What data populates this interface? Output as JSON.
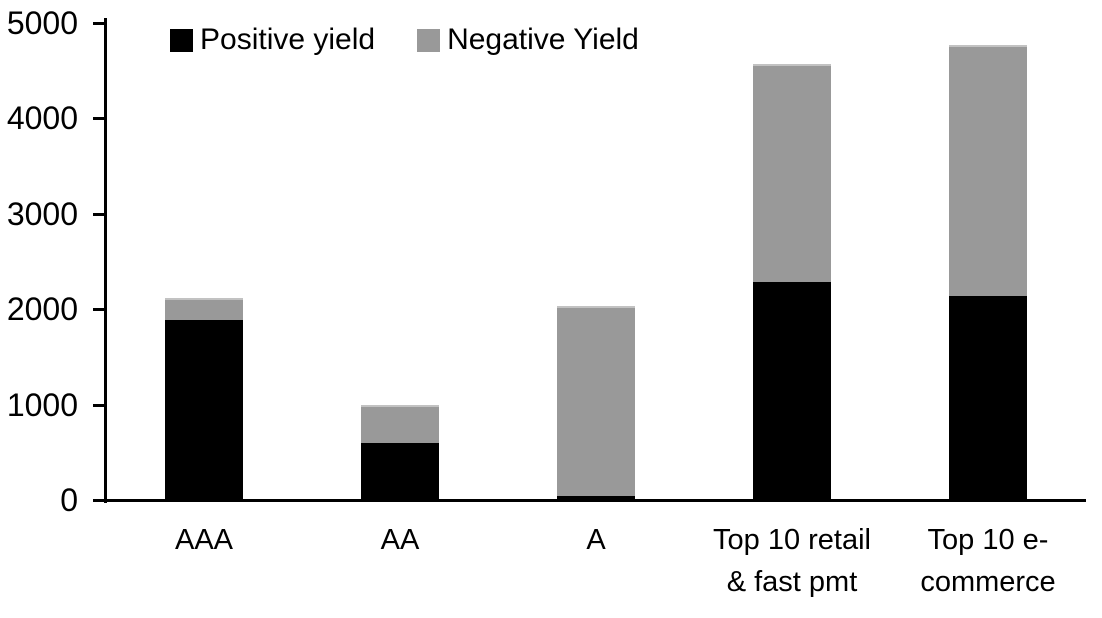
{
  "chart_data": {
    "type": "bar",
    "stacked": true,
    "title": "",
    "xlabel": "",
    "ylabel": "",
    "categories": [
      "AAA",
      "AA",
      "A",
      "Top 10 retail & fast pmt",
      "Top 10 e-commerce"
    ],
    "series": [
      {
        "name": "Positive yield",
        "color": "#000000",
        "values": [
          1890,
          600,
          40,
          2290,
          2140
        ]
      },
      {
        "name": "Negative Yield",
        "color": "#999999",
        "values": [
          230,
          400,
          1990,
          2280,
          2630
        ]
      }
    ],
    "totals": [
      2120,
      1000,
      2030,
      4570,
      4770
    ],
    "ylim": [
      0,
      5000
    ],
    "ytick_step": 1000,
    "ytick_labels": [
      "0",
      "1000",
      "2000",
      "3000",
      "4000",
      "5000"
    ],
    "grid": false,
    "legend_position": "top-left"
  },
  "colors": {
    "positive_series": "#000000",
    "negative_series": "#999999",
    "axis": "#000000",
    "background": "#ffffff",
    "negative_top_edge": "#c2c2c2"
  }
}
